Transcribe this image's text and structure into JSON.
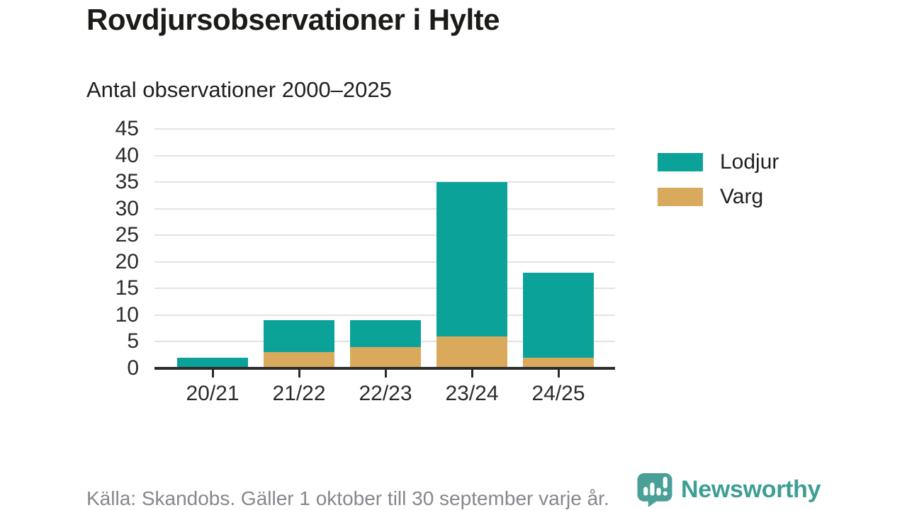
{
  "title": "Rovdjursobservationer i Hylte",
  "subtitle": "Antal observationer 2000–2025",
  "source": "Källa: Skandobs. Gäller 1 oktober till 30 september varje år.",
  "branding": {
    "name": "Newsworthy",
    "icon": "speech-bubble-bar-chart-exclamation"
  },
  "colors": {
    "lodjur": "#0ba29a",
    "varg": "#d9a95c",
    "axis": "#2b2b2b",
    "gridline": "#e3e3e3",
    "title_text": "#1b1b18",
    "source_text": "#86868e",
    "brand_teal": "#3d9e94",
    "logo_bubble": "#4aa098"
  },
  "chart_data": {
    "type": "bar",
    "stacked": true,
    "title": "Rovdjursobservationer i Hylte",
    "subtitle": "Antal observationer 2000–2025",
    "categories": [
      "20/21",
      "21/22",
      "22/23",
      "23/24",
      "24/25"
    ],
    "series": [
      {
        "name": "Lodjur",
        "color": "#0ba29a",
        "values": [
          2,
          6,
          5,
          29,
          16
        ]
      },
      {
        "name": "Varg",
        "color": "#d9a95c",
        "values": [
          0,
          3,
          4,
          6,
          2
        ]
      }
    ],
    "stack_order_bottom_to_top": [
      "Varg",
      "Lodjur"
    ],
    "totals": [
      2,
      9,
      9,
      35,
      18
    ],
    "xlabel": "",
    "ylabel": "",
    "ylim": [
      0,
      45
    ],
    "yticks": [
      0,
      5,
      10,
      15,
      20,
      25,
      30,
      35,
      40,
      45
    ],
    "grid": true,
    "legend_position": "right"
  }
}
